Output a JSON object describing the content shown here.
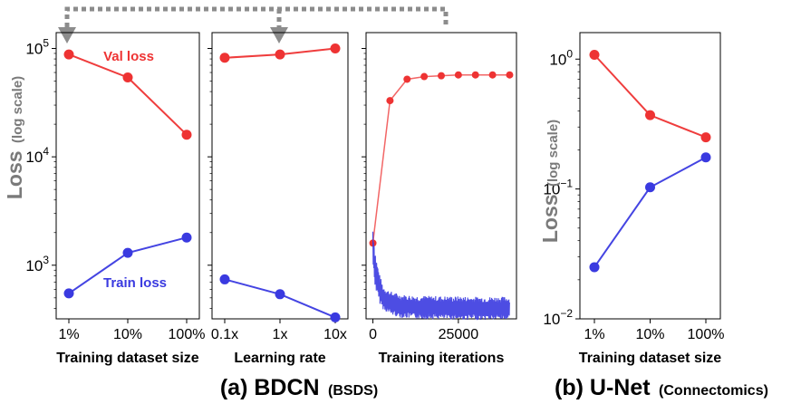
{
  "chart_data": [
    {
      "id": "bdcn-dataset",
      "type": "line",
      "yscale": "log",
      "ylim": [
        320,
        140000
      ],
      "categories": [
        "1%",
        "10%",
        "100%"
      ],
      "xlabel": "Training dataset size",
      "ylabel": "Loss",
      "ylabel_sub": "(log scale)",
      "yticks": [
        {
          "value": 1000,
          "base": "10",
          "exp": "3"
        },
        {
          "value": 10000,
          "base": "10",
          "exp": "4"
        },
        {
          "value": 100000,
          "base": "10",
          "exp": "5"
        }
      ],
      "series": [
        {
          "name": "Val loss",
          "color": "#ee3333",
          "values": [
            88000,
            54000,
            16000
          ]
        },
        {
          "name": "Train loss",
          "color": "#3a3ae0",
          "values": [
            550,
            1300,
            1800
          ]
        }
      ]
    },
    {
      "id": "bdcn-lr",
      "type": "line",
      "yscale": "log",
      "ylim": [
        320,
        140000
      ],
      "categories": [
        "0.1x",
        "1x",
        "10x"
      ],
      "xlabel": "Learning rate",
      "series": [
        {
          "name": "Val loss",
          "color": "#ee3333",
          "values": [
            82000,
            88000,
            100000
          ]
        },
        {
          "name": "Train loss",
          "color": "#3a3ae0",
          "values": [
            740,
            540,
            330
          ]
        }
      ]
    },
    {
      "id": "bdcn-iters",
      "type": "line",
      "yscale": "log",
      "ylim": [
        320,
        140000
      ],
      "xlim": [
        -2000,
        42000
      ],
      "xticks": [
        {
          "value": 0,
          "label": "0"
        },
        {
          "value": 25000,
          "label": "25000"
        }
      ],
      "xlabel": "Training iterations",
      "series": [
        {
          "name": "Val loss",
          "color": "#ee3333",
          "x": [
            0,
            5000,
            10000,
            15000,
            20000,
            25000,
            30000,
            35000,
            40000
          ],
          "values": [
            1600,
            33000,
            52000,
            55000,
            56000,
            57000,
            57000,
            57000,
            57000
          ]
        },
        {
          "name": "Train loss",
          "color": "#3a3ae0",
          "noisy": true,
          "x": [
            0,
            500,
            1000,
            2000,
            3000,
            5000,
            8000,
            12000,
            20000,
            30000,
            40000
          ],
          "values": [
            1500,
            1000,
            800,
            600,
            500,
            450,
            420,
            410,
            405,
            400,
            400
          ]
        }
      ]
    },
    {
      "id": "unet-dataset",
      "type": "line",
      "yscale": "log",
      "ylim": [
        0.01,
        1.6
      ],
      "categories": [
        "1%",
        "10%",
        "100%"
      ],
      "xlabel": "Training dataset size",
      "ylabel": "Loss",
      "ylabel_sub": "(log scale)",
      "yticks": [
        {
          "value": 0.01,
          "base": "10",
          "exp": "−2"
        },
        {
          "value": 0.1,
          "base": "10",
          "exp": "−1"
        },
        {
          "value": 1,
          "base": "10",
          "exp": "0"
        }
      ],
      "series": [
        {
          "name": "Val loss",
          "color": "#ee3333",
          "values": [
            1.08,
            0.37,
            0.25
          ]
        },
        {
          "name": "Train loss",
          "color": "#3a3ae0",
          "values": [
            0.025,
            0.103,
            0.175
          ]
        }
      ]
    }
  ],
  "annotations": {
    "val_loss_label": "Val loss",
    "train_loss_label": "Train loss",
    "connector": "dotted arrows linking the Training iterations panel to the Training dataset size and Learning rate panels"
  },
  "captions": {
    "a_main": "(a) BDCN",
    "a_sub": "(BSDS)",
    "b_main": "(b) U-Net",
    "b_sub": "(Connectomics)"
  },
  "colors": {
    "val": "#ee3333",
    "train": "#3a3ae0",
    "arrow": "#8c8c8c",
    "axis": "#000000"
  }
}
